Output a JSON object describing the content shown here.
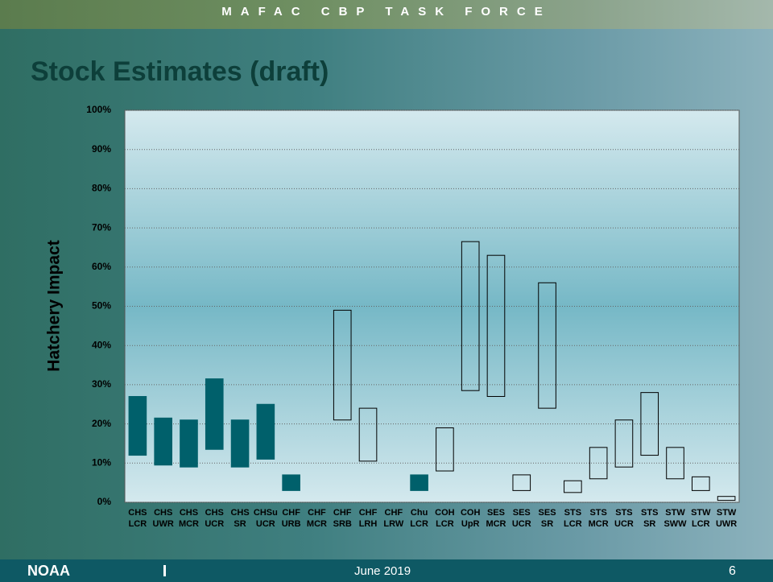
{
  "header": "MAFAC CBP TASK FORCE",
  "title": "Stock Estimates (draft)",
  "footer": {
    "logo": "NOAA",
    "date": "June 2019",
    "page": "6"
  },
  "chart_data": {
    "type": "range-bar",
    "y_label": "Hatchery Impact",
    "categories": [
      [
        "CHS",
        "LCR"
      ],
      [
        "CHS",
        "UWR"
      ],
      [
        "CHS",
        "MCR"
      ],
      [
        "CHS",
        "UCR"
      ],
      [
        "CHS",
        "SR"
      ],
      [
        "CHSu",
        "UCR"
      ],
      [
        "CHF",
        "URB"
      ],
      [
        "CHF",
        "MCR"
      ],
      [
        "CHF",
        "SRB"
      ],
      [
        "CHF",
        "LRH"
      ],
      [
        "CHF",
        "LRW"
      ],
      [
        "Chu",
        "LCR"
      ],
      [
        "COH",
        "LCR"
      ],
      [
        "COH",
        "UpR"
      ],
      [
        "SES",
        "MCR"
      ],
      [
        "SES",
        "UCR"
      ],
      [
        "SES",
        "SR"
      ],
      [
        "STS",
        "LCR"
      ],
      [
        "STS",
        "MCR"
      ],
      [
        "STS",
        "UCR"
      ],
      [
        "STS",
        "SR"
      ],
      [
        "STW",
        "SWW"
      ],
      [
        "STW",
        "LCR"
      ],
      [
        "STW",
        "UWR"
      ]
    ],
    "low": [
      12,
      9.5,
      9,
      13.5,
      9,
      11,
      3,
      null,
      21,
      10.5,
      null,
      3,
      8,
      28.5,
      27,
      3,
      24,
      2.5,
      6,
      9,
      12,
      6,
      3,
      0.5
    ],
    "high": [
      27,
      21.5,
      21,
      31.5,
      21,
      25,
      7,
      null,
      49,
      24,
      null,
      7,
      19,
      66.5,
      63,
      7,
      56,
      5.5,
      14,
      21,
      28,
      14,
      6.5,
      1.5
    ],
    "style": [
      "filled",
      "filled",
      "filled",
      "filled",
      "filled",
      "filled",
      "filled",
      null,
      "open",
      "open",
      null,
      "filled",
      "open",
      "open",
      "open",
      "open",
      "open",
      "open",
      "open",
      "open",
      "open",
      "open",
      "open",
      "open"
    ],
    "filled_color": "#00606b",
    "open_color": "#ffffff",
    "ylim": [
      0,
      100
    ],
    "yticks": [
      {
        "value": 0,
        "label": "0%"
      },
      {
        "value": 10,
        "label": "10%"
      },
      {
        "value": 20,
        "label": "20%"
      },
      {
        "value": 30,
        "label": "30%"
      },
      {
        "value": 40,
        "label": "40%"
      },
      {
        "value": 50,
        "label": "50%"
      },
      {
        "value": 60,
        "label": "60%"
      },
      {
        "value": 70,
        "label": "70%"
      },
      {
        "value": 80,
        "label": "80%"
      },
      {
        "value": 90,
        "label": "90%"
      },
      {
        "value": 100,
        "label": "100%"
      }
    ],
    "grid": true
  }
}
